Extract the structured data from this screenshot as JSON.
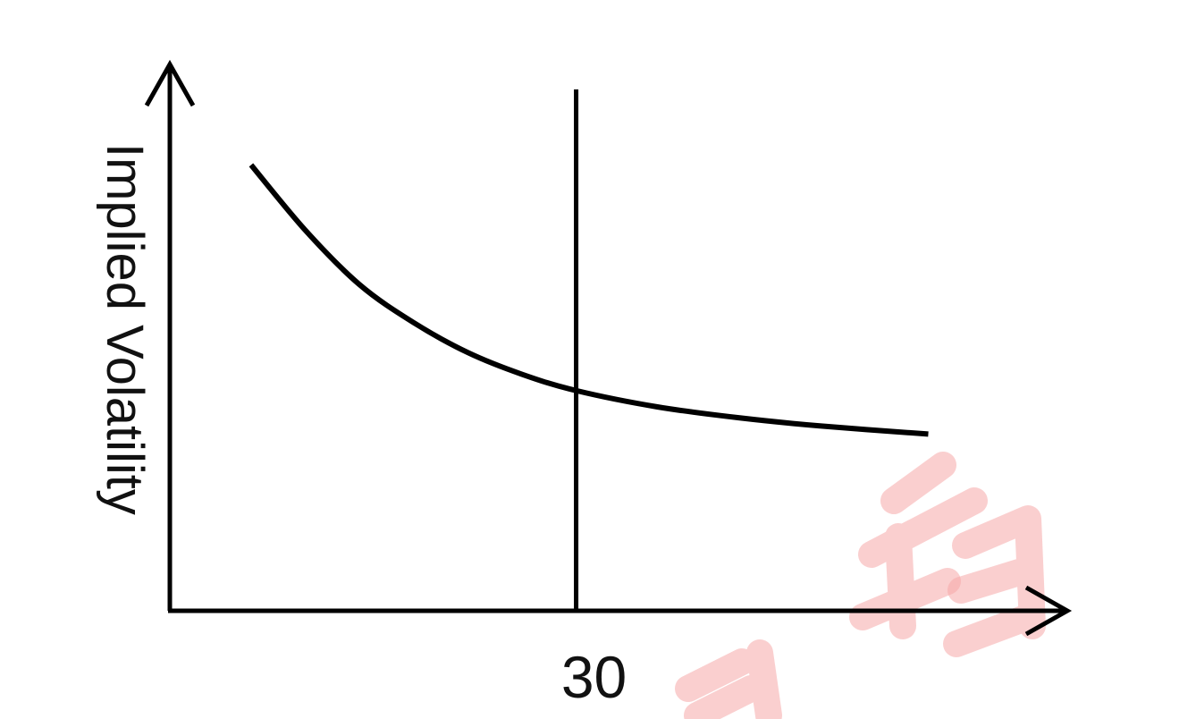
{
  "chart_data": {
    "type": "line",
    "title": "",
    "xlabel": "",
    "ylabel": "Implied Volatility",
    "x_ticks": [
      "30"
    ],
    "reference_line": {
      "x": 30
    },
    "series": [
      {
        "x": [
          6,
          10,
          14,
          18,
          22,
          26,
          30,
          36,
          42,
          48,
          56
        ],
        "y": [
          82,
          70,
          60,
          53,
          47.5,
          43.5,
          40.5,
          37.5,
          35.5,
          34,
          32.5
        ]
      }
    ],
    "xlim": [
      0,
      66
    ],
    "ylim": [
      0,
      100
    ],
    "grid": false,
    "colors": {
      "line": "#000000",
      "axis": "#000000",
      "watermark": "#f6a8a8"
    }
  }
}
